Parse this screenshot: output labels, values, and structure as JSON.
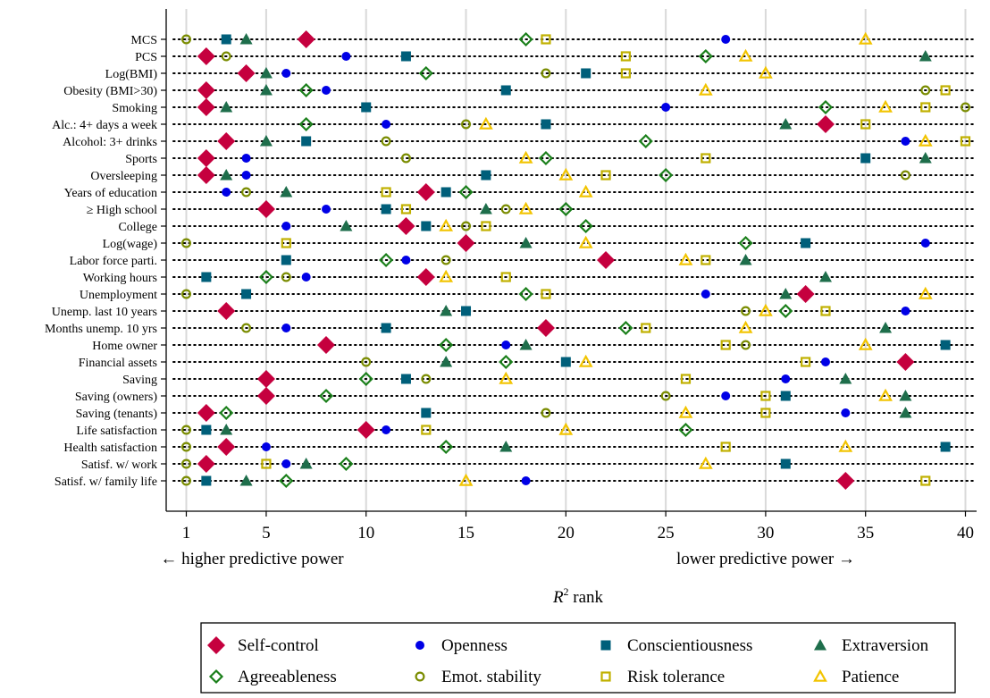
{
  "chart_data": {
    "type": "scatter",
    "xlabel_main": "R",
    "xlabel_sup": "2",
    "xlabel_rest": " rank",
    "note_left": "← higher predictive power",
    "note_right": "lower predictive power →",
    "xlim": [
      1,
      40
    ],
    "xticks": [
      "1",
      "5",
      "10",
      "15",
      "20",
      "25",
      "30",
      "35",
      "40"
    ],
    "xtick_values": [
      1,
      5,
      10,
      15,
      20,
      25,
      30,
      35,
      40
    ],
    "grid": true,
    "legend_position": "bottom",
    "categories": [
      "MCS",
      "PCS",
      "Log(BMI)",
      "Obesity (BMI>30)",
      "Smoking",
      "Alc.: 4+ days a week",
      "Alcohol: 3+ drinks",
      "Sports",
      "Oversleeping",
      "Years of education",
      "≥ High school",
      "College",
      "Log(wage)",
      "Labor force parti.",
      "Working hours",
      "Unemployment",
      "Unemp. last 10 years",
      "Months unemp. 10 yrs",
      "Home owner",
      "Financial assets",
      "Saving",
      "Saving (owners)",
      "Saving (tenants)",
      "Life satisfaction",
      "Health satisfaction",
      "Satisf. w/ work",
      "Satisf. w/ family life"
    ],
    "series": [
      {
        "name": "Self-control",
        "marker": "diamond-filled",
        "color": "#c5003e",
        "values": [
          7,
          2,
          4,
          2,
          2,
          33,
          3,
          2,
          2,
          13,
          5,
          12,
          15,
          22,
          13,
          32,
          3,
          19,
          8,
          37,
          5,
          5,
          2,
          10,
          3,
          2,
          34
        ]
      },
      {
        "name": "Openness",
        "marker": "circle-filled",
        "color": "#0000e6",
        "values": [
          28,
          9,
          6,
          8,
          25,
          11,
          37,
          4,
          4,
          3,
          8,
          6,
          38,
          12,
          7,
          27,
          37,
          6,
          17,
          33,
          31,
          28,
          34,
          11,
          5,
          6,
          18
        ]
      },
      {
        "name": "Conscientiousness",
        "marker": "square-filled",
        "color": "#005f7a",
        "values": [
          3,
          12,
          21,
          17,
          10,
          19,
          7,
          35,
          16,
          14,
          11,
          13,
          32,
          6,
          2,
          4,
          15,
          11,
          39,
          20,
          12,
          31,
          13,
          2,
          39,
          31,
          2
        ]
      },
      {
        "name": "Extraversion",
        "marker": "triangle-filled",
        "color": "#1e6e4b",
        "values": [
          4,
          38,
          5,
          5,
          3,
          31,
          5,
          38,
          3,
          6,
          16,
          9,
          18,
          29,
          33,
          31,
          14,
          36,
          18,
          14,
          34,
          37,
          37,
          3,
          17,
          7,
          4
        ]
      },
      {
        "name": "Agreeableness",
        "marker": "diamond-open",
        "color": "#1a7f1a",
        "values": [
          18,
          27,
          13,
          7,
          33,
          7,
          24,
          19,
          25,
          15,
          20,
          21,
          29,
          11,
          5,
          18,
          31,
          23,
          14,
          17,
          10,
          8,
          3,
          26,
          14,
          9,
          6
        ]
      },
      {
        "name": "Emot. stability",
        "marker": "circle-open",
        "color": "#7a8c00",
        "values": [
          1,
          3,
          19,
          38,
          40,
          15,
          11,
          12,
          37,
          4,
          17,
          15,
          1,
          14,
          6,
          1,
          29,
          4,
          29,
          10,
          13,
          25,
          19,
          1,
          1,
          1,
          1
        ]
      },
      {
        "name": "Risk tolerance",
        "marker": "square-open",
        "color": "#c0b000",
        "values": [
          19,
          23,
          23,
          39,
          38,
          35,
          40,
          27,
          22,
          11,
          12,
          16,
          6,
          27,
          17,
          19,
          33,
          24,
          28,
          32,
          26,
          30,
          30,
          13,
          28,
          5,
          38
        ]
      },
      {
        "name": "Patience",
        "marker": "triangle-open",
        "color": "#f2c400",
        "values": [
          35,
          29,
          30,
          27,
          36,
          16,
          38,
          18,
          20,
          21,
          18,
          14,
          21,
          26,
          14,
          38,
          30,
          29,
          35,
          21,
          17,
          36,
          26,
          20,
          34,
          27,
          15
        ]
      }
    ]
  }
}
